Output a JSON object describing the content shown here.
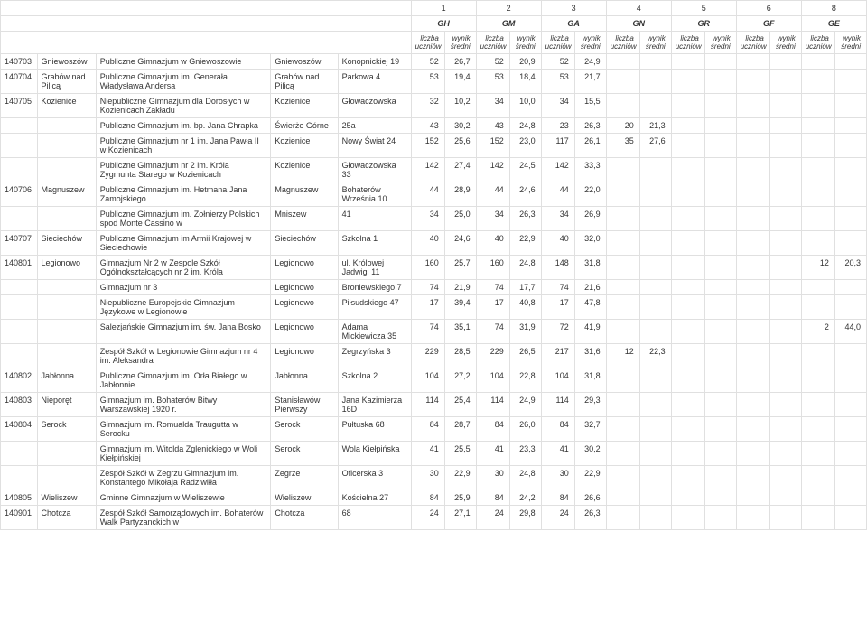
{
  "header": {
    "nums": [
      "1",
      "2",
      "3",
      "4",
      "5",
      "6",
      "8"
    ],
    "codes": [
      "GH",
      "GM",
      "GA",
      "GN",
      "GR",
      "GF",
      "GE"
    ],
    "sub1": "liczba uczniów",
    "sub2": "wynik średni"
  },
  "rows": [
    {
      "id": "140703",
      "loc": "Gniewoszów",
      "sch": "Publiczne Gimnazjum w Gniewoszowie",
      "city": "Gniewoszów",
      "addr": "Konopnickiej 19",
      "v": [
        "52",
        "26,7",
        "52",
        "20,9",
        "52",
        "24,9",
        "",
        "",
        "",
        "",
        "",
        "",
        "",
        ""
      ]
    },
    {
      "id": "140704",
      "loc": "Grabów nad Pilicą",
      "sch": "Publiczne Gimnazjum im. Generała Władysława Andersa",
      "city": "Grabów nad Pilicą",
      "addr": "Parkowa 4",
      "v": [
        "53",
        "19,4",
        "53",
        "18,4",
        "53",
        "21,7",
        "",
        "",
        "",
        "",
        "",
        "",
        "",
        ""
      ]
    },
    {
      "id": "140705",
      "loc": "Kozienice",
      "sch": "Niepubliczne Gimnazjum dla Dorosłych w Kozienicach Zakładu",
      "city": "Kozienice",
      "addr": "Głowaczowska",
      "v": [
        "32",
        "10,2",
        "34",
        "10,0",
        "34",
        "15,5",
        "",
        "",
        "",
        "",
        "",
        "",
        "",
        ""
      ]
    },
    {
      "id": "",
      "loc": "",
      "sch": "Publiczne Gimnazjum im. bp. Jana Chrapka",
      "city": "Świerże Górne",
      "addr": "25a",
      "v": [
        "43",
        "30,2",
        "43",
        "24,8",
        "23",
        "26,3",
        "20",
        "21,3",
        "",
        "",
        "",
        "",
        "",
        ""
      ]
    },
    {
      "id": "",
      "loc": "",
      "sch": "Publiczne Gimnazjum nr 1 im. Jana Pawła II w Kozienicach",
      "city": "Kozienice",
      "addr": "Nowy Świat 24",
      "v": [
        "152",
        "25,6",
        "152",
        "23,0",
        "117",
        "26,1",
        "35",
        "27,6",
        "",
        "",
        "",
        "",
        "",
        ""
      ]
    },
    {
      "id": "",
      "loc": "",
      "sch": "Publiczne Gimnazjum nr 2 im. Króla Zygmunta Starego w Kozienicach",
      "city": "Kozienice",
      "addr": "Głowaczowska 33",
      "v": [
        "142",
        "27,4",
        "142",
        "24,5",
        "142",
        "33,3",
        "",
        "",
        "",
        "",
        "",
        "",
        "",
        ""
      ]
    },
    {
      "id": "140706",
      "loc": "Magnuszew",
      "sch": "Publiczne Gimnazjum im. Hetmana Jana Zamojskiego",
      "city": "Magnuszew",
      "addr": "Bohaterów Września 10",
      "v": [
        "44",
        "28,9",
        "44",
        "24,6",
        "44",
        "22,0",
        "",
        "",
        "",
        "",
        "",
        "",
        "",
        ""
      ]
    },
    {
      "id": "",
      "loc": "",
      "sch": "Publiczne Gimnazjum im. Żołnierzy Polskich spod Monte Cassino w",
      "city": "Mniszew",
      "addr": "41",
      "v": [
        "34",
        "25,0",
        "34",
        "26,3",
        "34",
        "26,9",
        "",
        "",
        "",
        "",
        "",
        "",
        "",
        ""
      ]
    },
    {
      "id": "140707",
      "loc": "Sieciechów",
      "sch": "Publiczne Gimnazjum im Armii Krajowej w Sieciechowie",
      "city": "Sieciechów",
      "addr": "Szkolna 1",
      "v": [
        "40",
        "24,6",
        "40",
        "22,9",
        "40",
        "32,0",
        "",
        "",
        "",
        "",
        "",
        "",
        "",
        ""
      ]
    },
    {
      "id": "140801",
      "loc": "Legionowo",
      "sch": "Gimnazjum Nr 2 w Zespole Szkół Ogólnokształcących nr 2 im. Króla",
      "city": "Legionowo",
      "addr": "ul. Królowej Jadwigi 11",
      "v": [
        "160",
        "25,7",
        "160",
        "24,8",
        "148",
        "31,8",
        "",
        "",
        "",
        "",
        "",
        "",
        "12",
        "20,3"
      ]
    },
    {
      "id": "",
      "loc": "",
      "sch": "Gimnazjum nr 3",
      "city": "Legionowo",
      "addr": "Broniewskiego 7",
      "v": [
        "74",
        "21,9",
        "74",
        "17,7",
        "74",
        "21,6",
        "",
        "",
        "",
        "",
        "",
        "",
        "",
        ""
      ]
    },
    {
      "id": "",
      "loc": "",
      "sch": "Niepubliczne Europejskie Gimnazjum Językowe w Legionowie",
      "city": "Legionowo",
      "addr": "Piłsudskiego 47",
      "v": [
        "17",
        "39,4",
        "17",
        "40,8",
        "17",
        "47,8",
        "",
        "",
        "",
        "",
        "",
        "",
        "",
        ""
      ]
    },
    {
      "id": "",
      "loc": "",
      "sch": "Salezjańskie Gimnazjum im. św. Jana Bosko",
      "city": "Legionowo",
      "addr": "Adama Mickiewicza 35",
      "v": [
        "74",
        "35,1",
        "74",
        "31,9",
        "72",
        "41,9",
        "",
        "",
        "",
        "",
        "",
        "",
        "2",
        "44,0"
      ]
    },
    {
      "id": "",
      "loc": "",
      "sch": "Zespół Szkół w Legionowie Gimnazjum nr 4 im. Aleksandra",
      "city": "Legionowo",
      "addr": "Zegrzyńska 3",
      "v": [
        "229",
        "28,5",
        "229",
        "26,5",
        "217",
        "31,6",
        "12",
        "22,3",
        "",
        "",
        "",
        "",
        "",
        ""
      ]
    },
    {
      "id": "140802",
      "loc": "Jabłonna",
      "sch": "Publiczne Gimnazjum im. Orła Białego w Jabłonnie",
      "city": "Jabłonna",
      "addr": "Szkolna 2",
      "v": [
        "104",
        "27,2",
        "104",
        "22,8",
        "104",
        "31,8",
        "",
        "",
        "",
        "",
        "",
        "",
        "",
        ""
      ]
    },
    {
      "id": "140803",
      "loc": "Nieporęt",
      "sch": "Gimnazjum im. Bohaterów Bitwy Warszawskiej 1920 r.",
      "city": "Stanisławów Pierwszy",
      "addr": "Jana Kazimierza 16D",
      "v": [
        "114",
        "25,4",
        "114",
        "24,9",
        "114",
        "29,3",
        "",
        "",
        "",
        "",
        "",
        "",
        "",
        ""
      ]
    },
    {
      "id": "140804",
      "loc": "Serock",
      "sch": "Gimnazjum im. Romualda Traugutta w Serocku",
      "city": "Serock",
      "addr": "Pułtuska 68",
      "v": [
        "84",
        "28,7",
        "84",
        "26,0",
        "84",
        "32,7",
        "",
        "",
        "",
        "",
        "",
        "",
        "",
        ""
      ]
    },
    {
      "id": "",
      "loc": "",
      "sch": "Gimnazjum im. Witolda Zglenickiego w Woli Kiełpińskiej",
      "city": "Serock",
      "addr": "Wola Kiełpińska",
      "v": [
        "41",
        "25,5",
        "41",
        "23,3",
        "41",
        "30,2",
        "",
        "",
        "",
        "",
        "",
        "",
        "",
        ""
      ]
    },
    {
      "id": "",
      "loc": "",
      "sch": "Zespół Szkół w Zegrzu Gimnazjum im. Konstantego Mikołaja Radziwiłła",
      "city": "Zegrze",
      "addr": "Oficerska 3",
      "v": [
        "30",
        "22,9",
        "30",
        "24,8",
        "30",
        "22,9",
        "",
        "",
        "",
        "",
        "",
        "",
        "",
        ""
      ]
    },
    {
      "id": "140805",
      "loc": "Wieliszew",
      "sch": "Gminne Gimnazjum w Wieliszewie",
      "city": "Wieliszew",
      "addr": "Kościelna 27",
      "v": [
        "84",
        "25,9",
        "84",
        "24,2",
        "84",
        "26,6",
        "",
        "",
        "",
        "",
        "",
        "",
        "",
        ""
      ]
    },
    {
      "id": "140901",
      "loc": "Chotcza",
      "sch": "Zespół Szkół Samorządowych im. Bohaterów Walk Partyzanckich w",
      "city": "Chotcza",
      "addr": "68",
      "v": [
        "24",
        "27,1",
        "24",
        "29,8",
        "24",
        "26,3",
        "",
        "",
        "",
        "",
        "",
        "",
        "",
        ""
      ]
    }
  ]
}
